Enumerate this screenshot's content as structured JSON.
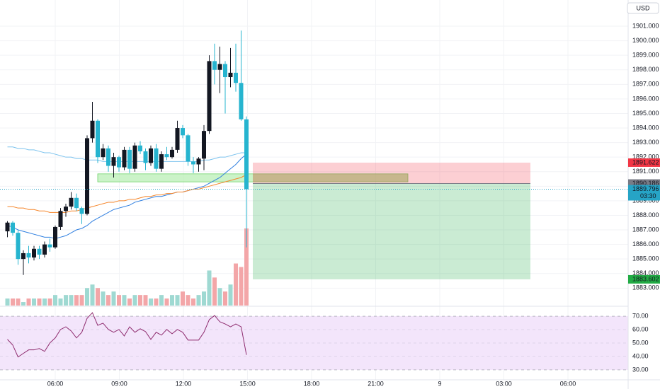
{
  "header": {
    "currency": "USD"
  },
  "chart_data": {
    "type": "candlestick",
    "x": [
      "03:45",
      "04:00",
      "04:15",
      "04:30",
      "04:45",
      "05:00",
      "05:15",
      "05:30",
      "05:45",
      "06:00",
      "06:15",
      "06:30",
      "06:45",
      "07:00",
      "07:15",
      "07:30",
      "07:45",
      "08:00",
      "08:15",
      "08:30",
      "08:45",
      "09:00",
      "09:15",
      "09:30",
      "09:45",
      "10:00",
      "10:15",
      "10:30",
      "10:45",
      "11:00",
      "11:15",
      "11:30",
      "11:45",
      "12:00",
      "12:15",
      "12:30",
      "12:45",
      "13:00",
      "13:15",
      "13:30",
      "13:45",
      "14:00",
      "14:15",
      "14:30",
      "14:45",
      "15:00"
    ],
    "open": [
      1886.9,
      1887.5,
      1886.8,
      1885.0,
      1885.4,
      1885.1,
      1885.7,
      1885.3,
      1886.0,
      1885.8,
      1887.2,
      1888.3,
      1888.6,
      1889.2,
      1888.5,
      1888.1,
      1893.3,
      1894.5,
      1892.0,
      1892.6,
      1891.4,
      1892.0,
      1891.3,
      1892.5,
      1891.2,
      1892.8,
      1892.4,
      1891.6,
      1892.6,
      1891.2,
      1892.2,
      1892.0,
      1892.5,
      1894.0,
      1893.5,
      1891.7,
      1891.5,
      1891.9,
      1893.8,
      1898.6,
      1898.0,
      1898.4,
      1897.5,
      1897.8,
      1897.1,
      1894.6
    ],
    "high": [
      1887.6,
      1887.6,
      1887.0,
      1885.6,
      1885.9,
      1885.9,
      1885.9,
      1886.2,
      1886.4,
      1887.3,
      1888.5,
      1888.8,
      1889.6,
      1889.5,
      1888.6,
      1893.5,
      1895.8,
      1894.6,
      1892.9,
      1892.8,
      1892.3,
      1892.1,
      1892.7,
      1892.7,
      1893.0,
      1893.1,
      1892.6,
      1892.8,
      1892.9,
      1892.4,
      1892.7,
      1892.7,
      1894.5,
      1894.2,
      1893.6,
      1892.0,
      1892.0,
      1894.2,
      1899.0,
      1899.8,
      1899.6,
      1898.6,
      1899.5,
      1899.8,
      1900.7,
      1894.8
    ],
    "low": [
      1886.5,
      1886.6,
      1884.6,
      1883.9,
      1884.7,
      1884.9,
      1885.0,
      1885.1,
      1885.5,
      1885.7,
      1887.0,
      1887.9,
      1888.4,
      1888.3,
      1887.4,
      1888.0,
      1893.0,
      1891.6,
      1891.8,
      1891.0,
      1890.6,
      1891.0,
      1891.1,
      1890.9,
      1891.0,
      1892.2,
      1891.1,
      1891.4,
      1891.0,
      1891.0,
      1891.8,
      1891.9,
      1892.3,
      1893.3,
      1891.4,
      1890.9,
      1891.0,
      1891.1,
      1893.6,
      1897.0,
      1896.4,
      1895.0,
      1896.8,
      1896.5,
      1894.5,
      1885.8
    ],
    "close": [
      1887.5,
      1886.8,
      1885.0,
      1885.4,
      1885.1,
      1885.7,
      1885.3,
      1886.0,
      1885.8,
      1887.2,
      1888.3,
      1888.6,
      1889.2,
      1888.5,
      1888.1,
      1893.3,
      1894.5,
      1892.0,
      1892.6,
      1891.4,
      1892.0,
      1891.3,
      1892.5,
      1891.2,
      1892.8,
      1892.4,
      1891.6,
      1892.6,
      1891.2,
      1892.2,
      1892.0,
      1892.5,
      1894.0,
      1893.5,
      1891.7,
      1891.5,
      1891.9,
      1893.8,
      1898.6,
      1898.0,
      1898.4,
      1897.5,
      1897.8,
      1897.1,
      1894.6,
      1889.796
    ],
    "up_color": "#131722",
    "down_color": "#26b4cf",
    "ylim": [
      1881.8,
      1902.8
    ],
    "yticks": [
      {
        "value": 1883,
        "label": "1883.000"
      },
      {
        "value": 1884,
        "label": "1884.000"
      },
      {
        "value": 1885,
        "label": "1885.000"
      },
      {
        "value": 1886,
        "label": "1886.000"
      },
      {
        "value": 1887,
        "label": "1887.000"
      },
      {
        "value": 1888,
        "label": "1888.000"
      },
      {
        "value": 1889,
        "label": "1889.000"
      },
      {
        "value": 1890,
        "label": "1890.000"
      },
      {
        "value": 1891,
        "label": "1891.000"
      },
      {
        "value": 1892,
        "label": "1892.000"
      },
      {
        "value": 1893,
        "label": "1893.000"
      },
      {
        "value": 1894,
        "label": "1894.000"
      },
      {
        "value": 1895,
        "label": "1895.000"
      },
      {
        "value": 1896,
        "label": "1896.000"
      },
      {
        "value": 1897,
        "label": "1897.000"
      },
      {
        "value": 1898,
        "label": "1898.000"
      },
      {
        "value": 1899,
        "label": "1899.000"
      },
      {
        "value": 1900,
        "label": "1900.000"
      },
      {
        "value": 1901,
        "label": "1901.000"
      }
    ],
    "xticks": [
      "06:00",
      "09:00",
      "12:00",
      "15:00",
      "18:00",
      "21:00",
      "9",
      "03:00",
      "06:00"
    ],
    "grid": true,
    "volume": {
      "values": [
        2,
        2,
        2,
        1,
        2,
        2,
        2,
        2,
        2,
        3,
        2,
        3,
        3,
        3,
        3,
        5,
        6,
        5,
        4,
        3,
        4,
        3,
        3,
        2,
        3,
        3,
        3,
        2,
        2,
        3,
        2,
        3,
        3,
        4,
        3,
        2,
        3,
        4,
        10,
        8,
        5,
        4,
        6,
        12,
        11,
        22
      ],
      "up_color": "#9fd9d2",
      "down_color": "#f3a6a8"
    },
    "moving_averages": [
      {
        "color": "#7cc3ee",
        "values": [
          1892.7,
          1892.7,
          1892.6,
          1892.6,
          1892.5,
          1892.5,
          1892.4,
          1892.3,
          1892.3,
          1892.2,
          1892.1,
          1892.0,
          1892.0,
          1891.9,
          1891.9,
          1891.8,
          1891.8,
          1891.8,
          1891.7,
          1891.7,
          1891.7,
          1891.7,
          1891.7,
          1891.7,
          1891.7,
          1891.7,
          1891.7,
          1891.7,
          1891.7,
          1891.7,
          1891.7,
          1891.7,
          1891.7,
          1891.7,
          1891.7,
          1891.7,
          1891.7,
          1891.8,
          1891.8,
          1891.9,
          1892.0,
          1892.0,
          1892.1,
          1892.2,
          1892.3,
          1892.3
        ]
      },
      {
        "color": "#2f7fe0",
        "values": [
          1887.3,
          1887.2,
          1887.0,
          1886.9,
          1886.8,
          1886.7,
          1886.6,
          1886.5,
          1886.5,
          1886.4,
          1886.5,
          1886.6,
          1886.8,
          1887.0,
          1887.1,
          1887.3,
          1887.6,
          1887.8,
          1888.0,
          1888.2,
          1888.4,
          1888.5,
          1888.6,
          1888.7,
          1888.9,
          1889.0,
          1889.1,
          1889.2,
          1889.3,
          1889.3,
          1889.4,
          1889.5,
          1889.6,
          1889.6,
          1889.7,
          1889.8,
          1889.9,
          1890.0,
          1890.2,
          1890.4,
          1890.6,
          1890.9,
          1891.2,
          1891.5,
          1891.9,
          1892.2
        ]
      },
      {
        "color": "#f5852a",
        "values": [
          1888.6,
          1888.6,
          1888.5,
          1888.5,
          1888.4,
          1888.4,
          1888.3,
          1888.3,
          1888.2,
          1888.2,
          1888.2,
          1888.2,
          1888.3,
          1888.3,
          1888.4,
          1888.5,
          1888.6,
          1888.7,
          1888.8,
          1888.9,
          1888.9,
          1889.0,
          1889.0,
          1889.1,
          1889.1,
          1889.2,
          1889.3,
          1889.3,
          1889.4,
          1889.4,
          1889.5,
          1889.5,
          1889.6,
          1889.6,
          1889.7,
          1889.8,
          1889.8,
          1889.9,
          1890.0,
          1890.1,
          1890.2,
          1890.3,
          1890.4,
          1890.5,
          1890.6,
          1890.8
        ]
      }
    ],
    "zone": {
      "low": 1890.3,
      "high": 1890.85,
      "color": "#b5eeb0"
    },
    "position": {
      "entry": 1890.186,
      "stop": 1891.622,
      "target": 1883.602,
      "entry_color": "#787b86",
      "stop_color": "#f23645",
      "target_color": "#22ab45"
    },
    "last_price": {
      "value": 1889.796,
      "countdown": "03:30",
      "color": "#26a4c6"
    },
    "rsi": {
      "color": "#8e2b6e",
      "band_color": "#f3e5fb",
      "values": [
        52.7,
        48.5,
        39.6,
        42.3,
        44.9,
        44.9,
        45.9,
        43.8,
        50.1,
        53.8,
        60.1,
        62.1,
        59.0,
        53.8,
        58.0,
        68.4,
        72.6,
        63.2,
        64.8,
        60.1,
        58.0,
        60.1,
        55.3,
        62.1,
        58.0,
        60.6,
        58.5,
        52.7,
        58.0,
        55.9,
        60.1,
        56.9,
        60.1,
        58.0,
        52.2,
        52.2,
        52.2,
        58.0,
        67.4,
        70.5,
        65.8,
        64.2,
        62.1,
        64.2,
        62.1,
        41.2
      ],
      "ylim": [
        22.6,
        77.4
      ],
      "yticks": [
        {
          "value": 70,
          "label": "70.00"
        },
        {
          "value": 60,
          "label": "60.00"
        },
        {
          "value": 50,
          "label": "50.00"
        },
        {
          "value": 40,
          "label": "40.00"
        },
        {
          "value": 30,
          "label": "30.00"
        }
      ]
    }
  }
}
